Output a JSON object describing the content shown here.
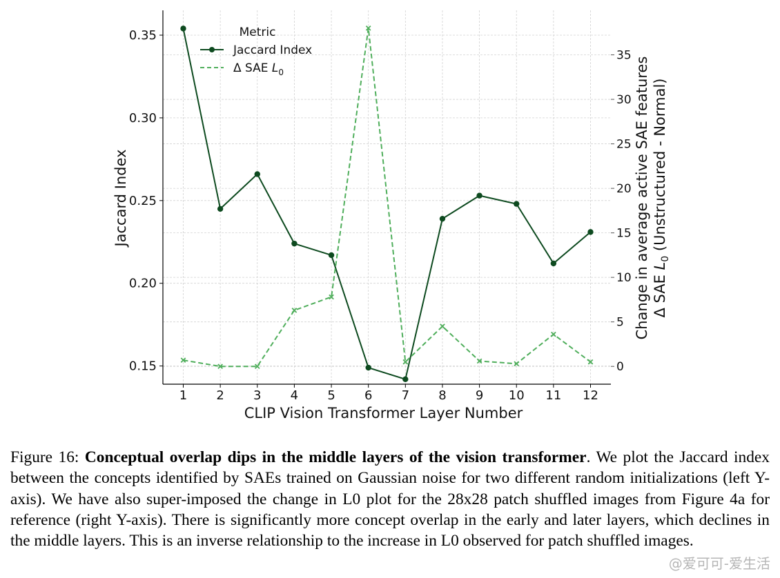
{
  "chart_data": {
    "type": "line",
    "x": [
      1,
      2,
      3,
      4,
      5,
      6,
      7,
      8,
      9,
      10,
      11,
      12
    ],
    "xlabel": "CLIP Vision Transformer Layer Number",
    "ylabel_left": "Jaccard Index",
    "ylabel_right_line1": "Change in average active SAE features",
    "ylabel_right_line2_prefix": "Δ SAE ",
    "ylabel_right_line2_sub": "0",
    "ylabel_right_line2_suffix": " (Unstructured - Normal)",
    "ylim_left": [
      0.139,
      0.365
    ],
    "ylim_right": [
      -2,
      40
    ],
    "yticks_left": [
      0.15,
      0.2,
      0.25,
      0.3,
      0.35
    ],
    "yticks_right": [
      0,
      5,
      10,
      15,
      20,
      25,
      30,
      35
    ],
    "grid": true,
    "legend_title": "Metric",
    "legend_position": "top-left",
    "series": [
      {
        "name": "Jaccard Index",
        "axis": "left",
        "color": "#0d4a1f",
        "style": "solid",
        "marker": "circle",
        "values": [
          0.354,
          0.245,
          0.266,
          0.224,
          0.217,
          0.149,
          0.142,
          0.239,
          0.253,
          0.248,
          0.212,
          0.231
        ]
      },
      {
        "name": "Δ SAE L0",
        "name_prefix": "Δ SAE ",
        "name_sub": "0",
        "axis": "right",
        "color": "#4fae5b",
        "style": "dashed",
        "marker": "x",
        "values": [
          0.7,
          0.0,
          0.0,
          6.3,
          7.8,
          38.0,
          0.5,
          4.5,
          0.6,
          0.3,
          3.6,
          0.5
        ]
      }
    ]
  },
  "caption": {
    "label": "Figure 16: ",
    "bold": "Conceptual overlap dips in the middle layers of the vision transformer",
    "text": ". We plot the Jaccard index between the concepts identified by SAEs trained on Gaussian noise for two different random initializations (left Y-axis). We have also super-imposed the change in L0 plot for the 28x28 patch shuffled images from Figure 4a for reference (right Y-axis). There is significantly more concept overlap in the early and later layers, which declines in the middle layers. This is an inverse relationship to the increase in L0 observed for patch shuffled images."
  },
  "watermark": "@爱可可-爱生活"
}
